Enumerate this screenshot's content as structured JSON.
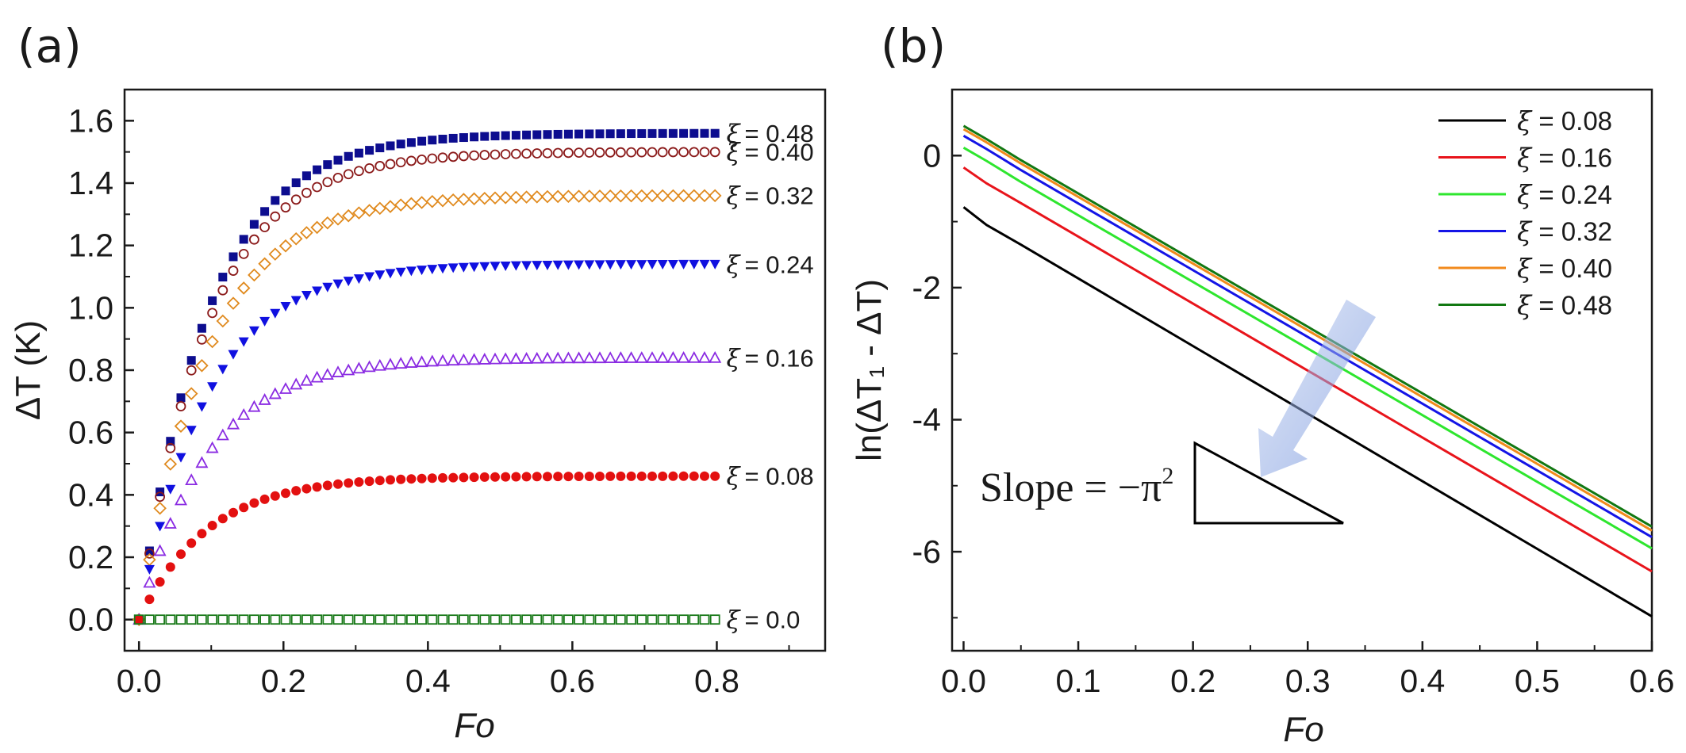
{
  "chart_data": [
    {
      "panel_label": "(a)",
      "type": "scatter",
      "xlabel": "Fo",
      "ylabel": "ΔT (K)",
      "xlim": [
        -0.02,
        0.95
      ],
      "ylim": [
        -0.1,
        1.7
      ],
      "xticks": [
        "0.0",
        "0.2",
        "0.4",
        "0.6",
        "0.8"
      ],
      "yticks": [
        "0.0",
        "0.2",
        "0.4",
        "0.6",
        "0.8",
        "1.0",
        "1.2",
        "1.4",
        "1.6"
      ],
      "series_prefix": "ξ",
      "series": [
        {
          "name": "= 0.48",
          "plateau": 1.56,
          "k": 10.5,
          "marker": "filled-square",
          "color": "#0d0d8f"
        },
        {
          "name": "= 0.40",
          "plateau": 1.5,
          "k": 10.5,
          "marker": "open-circle",
          "color": "#8b1a1a"
        },
        {
          "name": "= 0.32",
          "plateau": 1.36,
          "k": 10.5,
          "marker": "open-diamond",
          "color": "#e08a1e"
        },
        {
          "name": "= 0.24",
          "plateau": 1.14,
          "k": 10.5,
          "marker": "filled-triangle-down",
          "color": "#1010e0"
        },
        {
          "name": "= 0.16",
          "plateau": 0.84,
          "k": 10.5,
          "marker": "open-triangle-up",
          "color": "#8a2be2"
        },
        {
          "name": "= 0.08",
          "plateau": 0.46,
          "k": 10.5,
          "marker": "filled-circle",
          "color": "#e31010"
        },
        {
          "name": "= 0.0",
          "plateau": 0.0,
          "k": 10.5,
          "marker": "open-square",
          "color": "#1a7a1a"
        }
      ],
      "x_start": 0.0,
      "x_end": 0.8,
      "x_step": 0.0145
    },
    {
      "panel_label": "(b)",
      "type": "line",
      "xlabel": "Fo",
      "ylabel": "ln(ΔT₁ - ΔT)",
      "xlim": [
        -0.01,
        0.6
      ],
      "ylim": [
        -7.5,
        1.0
      ],
      "xticks": [
        "0.0",
        "0.1",
        "0.2",
        "0.3",
        "0.4",
        "0.5",
        "0.6"
      ],
      "yticks": [
        "0",
        "-2",
        "-4",
        "-6"
      ],
      "legend_position": "top-right",
      "series": [
        {
          "name": "ξ = 0.08",
          "color": "#000000",
          "x": [
            0.0,
            0.02,
            0.05,
            0.6
          ],
          "y": [
            -0.78,
            -1.05,
            -1.35,
            -6.98
          ]
        },
        {
          "name": "ξ = 0.16",
          "color": "#e8141b",
          "x": [
            0.0,
            0.02,
            0.05,
            0.6
          ],
          "y": [
            -0.18,
            -0.42,
            -0.72,
            -6.3
          ]
        },
        {
          "name": "ξ = 0.24",
          "color": "#2ee62e",
          "x": [
            0.0,
            0.02,
            0.05,
            0.6
          ],
          "y": [
            0.12,
            -0.08,
            -0.4,
            -5.95
          ]
        },
        {
          "name": "ξ = 0.32",
          "color": "#1414e6",
          "x": [
            0.0,
            0.02,
            0.05,
            0.6
          ],
          "y": [
            0.3,
            0.1,
            -0.22,
            -5.78
          ]
        },
        {
          "name": "ξ = 0.40",
          "color": "#f28a1c",
          "x": [
            0.0,
            0.02,
            0.05,
            0.6
          ],
          "y": [
            0.4,
            0.2,
            -0.12,
            -5.68
          ]
        },
        {
          "name": "ξ = 0.48",
          "color": "#127812",
          "x": [
            0.0,
            0.02,
            0.05,
            0.6
          ],
          "y": [
            0.45,
            0.25,
            -0.07,
            -5.62
          ]
        }
      ],
      "annotation": {
        "text": "Slope = −π",
        "superscript": "2"
      }
    }
  ]
}
